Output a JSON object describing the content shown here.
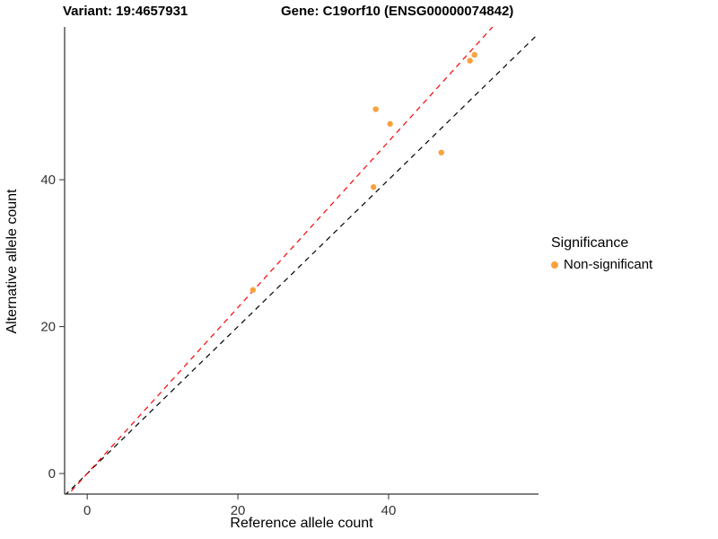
{
  "header": {
    "variant_title": "Variant: 19:4657931",
    "gene_title": "Gene: C19orf10 (ENSG00000074842)"
  },
  "chart_data": {
    "type": "scatter",
    "title": "",
    "xlabel": "Reference allele count",
    "ylabel": "Alternative allele count",
    "x_ticks": [
      0,
      20,
      40
    ],
    "y_ticks": [
      0,
      20,
      40
    ],
    "xlim": [
      -3,
      59.9
    ],
    "ylim": [
      -2.8,
      60.8
    ],
    "grid": false,
    "points": [
      [
        22,
        25
      ],
      [
        38,
        39
      ],
      [
        38.3,
        49.6
      ],
      [
        40.2,
        47.6
      ],
      [
        47,
        43.7
      ],
      [
        50.8,
        56.2
      ],
      [
        51.4,
        57.0
      ]
    ],
    "point_color": "#F9A13C",
    "lines": [
      {
        "name": "identity",
        "slope": 1.0,
        "intercept": 0,
        "color": "#000000",
        "style": "dashed"
      },
      {
        "name": "fit",
        "slope": 1.13,
        "intercept": 0,
        "color": "#FF0000",
        "style": "dashed"
      }
    ],
    "legend": {
      "position": "right",
      "title": "Significance",
      "entries": [
        {
          "label": "Non-significant",
          "color": "#F9A13C"
        }
      ]
    }
  }
}
